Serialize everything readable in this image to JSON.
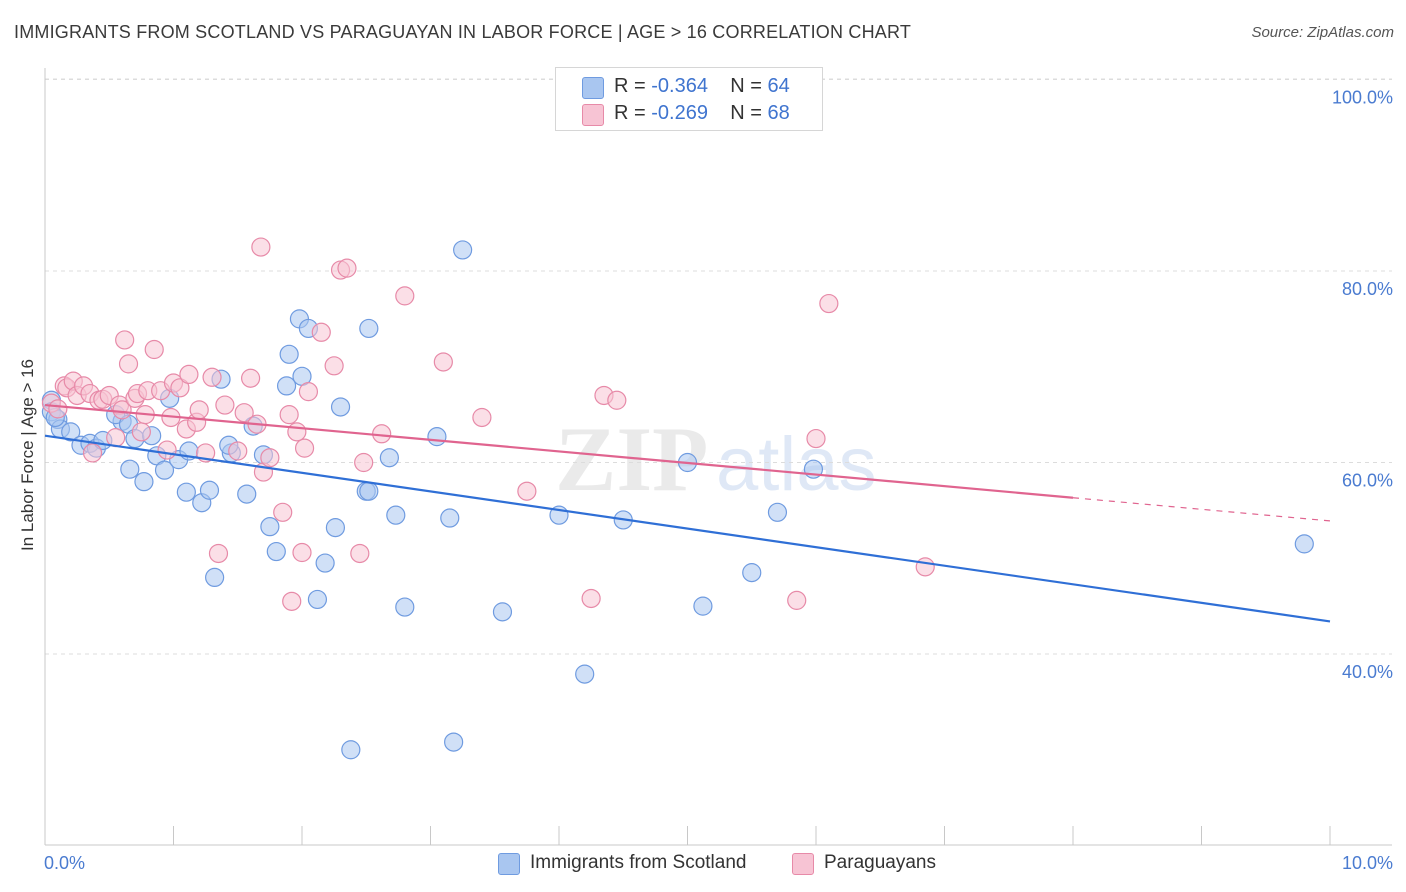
{
  "title": "IMMIGRANTS FROM SCOTLAND VS PARAGUAYAN IN LABOR FORCE | AGE > 16 CORRELATION CHART",
  "source": "Source: ZipAtlas.com",
  "watermark": {
    "zip": "ZIP",
    "atlas": "atlas"
  },
  "legend": {
    "r_label": "R =",
    "n_label": "N =",
    "rows": [
      {
        "r": "-0.364",
        "n": "64",
        "color": "#a9c6f0",
        "border": "#6f9be0"
      },
      {
        "r": "-0.269",
        "n": "68",
        "color": "#f7c4d4",
        "border": "#e78aa8"
      }
    ]
  },
  "bottom_legend": [
    {
      "label": "Immigrants from Scotland",
      "color": "#a9c6f0",
      "border": "#6f9be0"
    },
    {
      "label": "Paraguayans",
      "color": "#f7c4d4",
      "border": "#e78aa8"
    }
  ],
  "chart_data": {
    "type": "scatter",
    "title": "IMMIGRANTS FROM SCOTLAND VS PARAGUAYAN IN LABOR FORCE | AGE > 16 CORRELATION CHART",
    "xlabel": "",
    "ylabel": "In Labor Force | Age > 16",
    "xlim": [
      0,
      10
    ],
    "ylim": [
      20,
      102
    ],
    "x_tick_labels": [
      "0.0%",
      "10.0%"
    ],
    "y_ticks": [
      40,
      60,
      80,
      100
    ],
    "y_tick_labels": [
      "40.0%",
      "60.0%",
      "80.0%",
      "100.0%"
    ],
    "grid": true,
    "series": [
      {
        "name": "Immigrants from Scotland",
        "color": "#6f9be0",
        "fill": "#a9c6f0",
        "line_color": "#2f6fd6",
        "trend": {
          "x": [
            0,
            10
          ],
          "y": [
            62.8,
            43.4
          ],
          "dashed_from": null
        },
        "points": [
          [
            0.05,
            66.5
          ],
          [
            0.05,
            65.3
          ],
          [
            0.1,
            64.5
          ],
          [
            0.12,
            63.5
          ],
          [
            0.2,
            63.2
          ],
          [
            0.28,
            61.8
          ],
          [
            0.35,
            62.0
          ],
          [
            0.4,
            61.5
          ],
          [
            0.45,
            62.3
          ],
          [
            0.6,
            64.3
          ],
          [
            0.55,
            65.0
          ],
          [
            0.65,
            64.0
          ],
          [
            0.7,
            62.5
          ],
          [
            0.66,
            59.3
          ],
          [
            0.77,
            58.0
          ],
          [
            0.83,
            62.8
          ],
          [
            0.87,
            60.7
          ],
          [
            0.93,
            59.2
          ],
          [
            1.04,
            60.3
          ],
          [
            0.97,
            66.7
          ],
          [
            1.12,
            61.2
          ],
          [
            1.1,
            56.9
          ],
          [
            1.22,
            55.8
          ],
          [
            1.28,
            57.1
          ],
          [
            1.32,
            48.0
          ],
          [
            1.37,
            68.7
          ],
          [
            1.45,
            61.0
          ],
          [
            1.43,
            61.8
          ],
          [
            1.57,
            56.7
          ],
          [
            1.62,
            63.8
          ],
          [
            1.7,
            60.8
          ],
          [
            1.75,
            53.3
          ],
          [
            1.8,
            50.7
          ],
          [
            1.88,
            68.0
          ],
          [
            1.9,
            71.3
          ],
          [
            1.98,
            75.0
          ],
          [
            2.0,
            69.0
          ],
          [
            2.05,
            74.0
          ],
          [
            2.12,
            45.7
          ],
          [
            2.18,
            49.5
          ],
          [
            2.26,
            53.2
          ],
          [
            2.3,
            65.8
          ],
          [
            2.38,
            30.0
          ],
          [
            2.5,
            57.0
          ],
          [
            2.52,
            57.0
          ],
          [
            2.52,
            74.0
          ],
          [
            2.68,
            60.5
          ],
          [
            2.73,
            54.5
          ],
          [
            2.8,
            44.9
          ],
          [
            3.05,
            62.7
          ],
          [
            3.15,
            54.2
          ],
          [
            3.18,
            30.8
          ],
          [
            3.25,
            82.2
          ],
          [
            3.56,
            44.4
          ],
          [
            4.0,
            54.5
          ],
          [
            4.2,
            37.9
          ],
          [
            4.5,
            54.0
          ],
          [
            5.0,
            60.0
          ],
          [
            5.12,
            45.0
          ],
          [
            5.5,
            48.5
          ],
          [
            5.7,
            54.8
          ],
          [
            5.98,
            59.3
          ],
          [
            9.8,
            51.5
          ],
          [
            0.08,
            64.7
          ]
        ]
      },
      {
        "name": "Paraguayans",
        "color": "#e78aa8",
        "fill": "#f7c4d4",
        "line_color": "#e0648f",
        "trend": {
          "x": [
            0,
            10
          ],
          "y": [
            66.0,
            53.9
          ],
          "dashed_from": 8.0
        },
        "points": [
          [
            0.05,
            66.2
          ],
          [
            0.1,
            65.6
          ],
          [
            0.15,
            68.0
          ],
          [
            0.17,
            67.8
          ],
          [
            0.22,
            68.5
          ],
          [
            0.25,
            67.0
          ],
          [
            0.3,
            68.0
          ],
          [
            0.35,
            67.2
          ],
          [
            0.37,
            61.0
          ],
          [
            0.42,
            66.5
          ],
          [
            0.45,
            66.6
          ],
          [
            0.5,
            67.0
          ],
          [
            0.55,
            62.6
          ],
          [
            0.58,
            66.0
          ],
          [
            0.6,
            65.5
          ],
          [
            0.62,
            72.8
          ],
          [
            0.65,
            70.3
          ],
          [
            0.7,
            66.7
          ],
          [
            0.72,
            67.2
          ],
          [
            0.75,
            63.2
          ],
          [
            0.78,
            65.0
          ],
          [
            0.8,
            67.5
          ],
          [
            0.85,
            71.8
          ],
          [
            0.9,
            67.5
          ],
          [
            0.95,
            61.3
          ],
          [
            0.98,
            64.7
          ],
          [
            1.0,
            68.3
          ],
          [
            1.05,
            67.8
          ],
          [
            1.1,
            63.5
          ],
          [
            1.12,
            69.2
          ],
          [
            1.18,
            64.2
          ],
          [
            1.2,
            65.5
          ],
          [
            1.25,
            61.0
          ],
          [
            1.3,
            68.9
          ],
          [
            1.35,
            50.5
          ],
          [
            1.4,
            66.0
          ],
          [
            1.5,
            61.2
          ],
          [
            1.55,
            65.2
          ],
          [
            1.6,
            68.8
          ],
          [
            1.65,
            64.0
          ],
          [
            1.7,
            59.0
          ],
          [
            1.75,
            60.5
          ],
          [
            1.68,
            82.5
          ],
          [
            1.85,
            54.8
          ],
          [
            1.9,
            65.0
          ],
          [
            1.92,
            45.5
          ],
          [
            1.96,
            63.2
          ],
          [
            2.0,
            50.6
          ],
          [
            2.02,
            61.5
          ],
          [
            2.05,
            67.4
          ],
          [
            2.15,
            73.6
          ],
          [
            2.25,
            70.1
          ],
          [
            2.3,
            80.1
          ],
          [
            2.35,
            80.3
          ],
          [
            2.45,
            50.5
          ],
          [
            2.48,
            60.0
          ],
          [
            2.62,
            63.0
          ],
          [
            2.8,
            77.4
          ],
          [
            3.1,
            70.5
          ],
          [
            3.4,
            64.7
          ],
          [
            3.75,
            57.0
          ],
          [
            4.25,
            45.8
          ],
          [
            4.35,
            67.0
          ],
          [
            4.45,
            66.5
          ],
          [
            5.85,
            45.6
          ],
          [
            6.0,
            62.5
          ],
          [
            6.1,
            76.6
          ],
          [
            6.85,
            49.1
          ]
        ]
      }
    ]
  }
}
